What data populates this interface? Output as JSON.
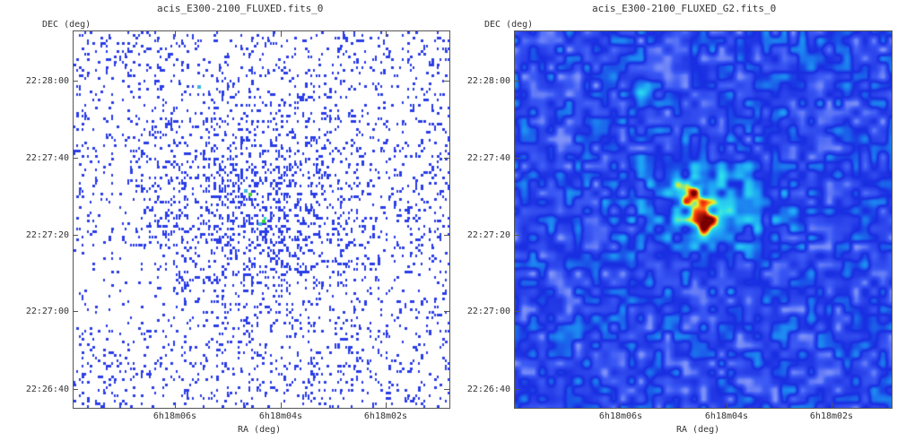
{
  "left_panel": {
    "title": "acis_E300-2100_FLUXED.fits_0",
    "ylabel": "DEC (deg)",
    "xlabel": "RA (deg)",
    "y_ticks": [
      "22:28:00",
      "22:27:40",
      "22:27:20",
      "22:27:00",
      "22:26:40"
    ],
    "x_ticks": [
      "6h18m06s",
      "6h18m04s",
      "6h18m02s"
    ],
    "image_style": "sparse-counts",
    "colormap": [
      "#ffffff",
      "#2a3de8",
      "#3fb6e0",
      "#2ee0c8",
      "#3ad23a"
    ]
  },
  "right_panel": {
    "title": "acis_E300-2100_FLUXED_G2.fits_0",
    "ylabel": "DEC (deg)",
    "xlabel": "RA (deg)",
    "y_ticks": [
      "22:28:00",
      "22:27:40",
      "22:27:20",
      "22:27:00",
      "22:26:40"
    ],
    "x_ticks": [
      "6h18m06s",
      "6h18m04s",
      "6h18m02s"
    ],
    "image_style": "smoothed",
    "colormap": [
      "#ffffff",
      "#1a2ae0",
      "#1fa8f0",
      "#30e0e8",
      "#f0f020",
      "#ff3a10",
      "#7a0000"
    ]
  }
}
